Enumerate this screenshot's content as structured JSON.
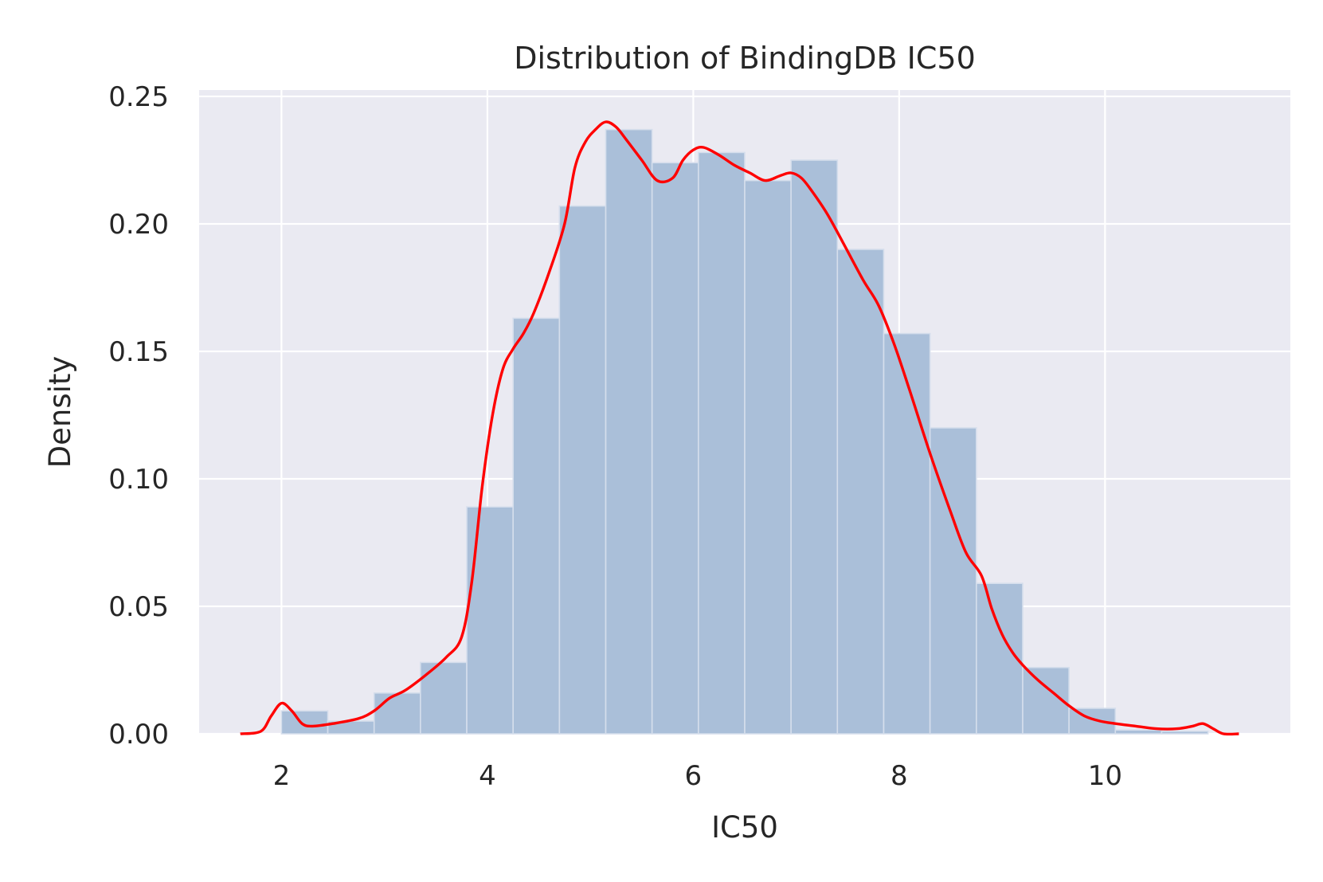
{
  "chart_data": {
    "type": "bar",
    "title": "Distribution of BindingDB IC50",
    "xlabel": "IC50",
    "ylabel": "Density",
    "xlim": [
      1.2,
      11.8
    ],
    "ylim": [
      0,
      0.2525
    ],
    "x_ticks": [
      2,
      4,
      6,
      8,
      10
    ],
    "x_tick_labels": [
      "2",
      "4",
      "6",
      "8",
      "10"
    ],
    "y_ticks": [
      0.0,
      0.05,
      0.1,
      0.15,
      0.2,
      0.25
    ],
    "y_tick_labels": [
      "0.00",
      "0.05",
      "0.10",
      "0.15",
      "0.20",
      "0.25"
    ],
    "grid": true,
    "bin_edges": [
      2.0,
      2.45,
      2.9,
      3.35,
      3.8,
      4.25,
      4.7,
      5.15,
      5.6,
      6.05,
      6.5,
      6.95,
      7.4,
      7.85,
      8.3,
      8.75,
      9.2,
      9.65,
      10.1,
      10.55,
      11.0
    ],
    "bar_values": [
      0.009,
      0.005,
      0.016,
      0.028,
      0.089,
      0.163,
      0.207,
      0.237,
      0.224,
      0.228,
      0.217,
      0.225,
      0.19,
      0.157,
      0.12,
      0.059,
      0.026,
      0.01,
      0.0015,
      0.001
    ],
    "kde": {
      "x": [
        1.6,
        1.8,
        1.9,
        2.0,
        2.1,
        2.2,
        2.3,
        2.5,
        2.75,
        2.9,
        3.05,
        3.2,
        3.4,
        3.6,
        3.75,
        3.85,
        3.95,
        4.05,
        4.15,
        4.25,
        4.35,
        4.45,
        4.6,
        4.75,
        4.85,
        4.95,
        5.05,
        5.15,
        5.25,
        5.35,
        5.5,
        5.65,
        5.8,
        5.9,
        6.0,
        6.1,
        6.25,
        6.4,
        6.55,
        6.7,
        6.85,
        6.95,
        7.05,
        7.15,
        7.3,
        7.45,
        7.65,
        7.8,
        7.95,
        8.1,
        8.3,
        8.5,
        8.65,
        8.8,
        8.9,
        9.0,
        9.1,
        9.2,
        9.35,
        9.5,
        9.65,
        9.8,
        9.95,
        10.1,
        10.3,
        10.5,
        10.7,
        10.85,
        10.95,
        11.05,
        11.15,
        11.3
      ],
      "y": [
        0.0,
        0.001,
        0.007,
        0.012,
        0.009,
        0.004,
        0.003,
        0.004,
        0.006,
        0.009,
        0.014,
        0.017,
        0.023,
        0.03,
        0.038,
        0.06,
        0.097,
        0.125,
        0.143,
        0.151,
        0.157,
        0.165,
        0.181,
        0.2,
        0.222,
        0.232,
        0.237,
        0.24,
        0.238,
        0.233,
        0.225,
        0.217,
        0.218,
        0.225,
        0.229,
        0.23,
        0.227,
        0.223,
        0.22,
        0.217,
        0.219,
        0.22,
        0.218,
        0.213,
        0.204,
        0.193,
        0.178,
        0.168,
        0.153,
        0.135,
        0.11,
        0.087,
        0.071,
        0.062,
        0.049,
        0.039,
        0.032,
        0.027,
        0.021,
        0.016,
        0.011,
        0.007,
        0.005,
        0.004,
        0.003,
        0.002,
        0.002,
        0.003,
        0.004,
        0.002,
        0.0,
        0.0
      ]
    },
    "colors": {
      "background": "#eaeaf2",
      "grid": "#ffffff",
      "bar_fill": "#aabfd9",
      "bar_edge": "#d5deec",
      "kde_line": "#ff0000",
      "text": "#262626"
    }
  }
}
